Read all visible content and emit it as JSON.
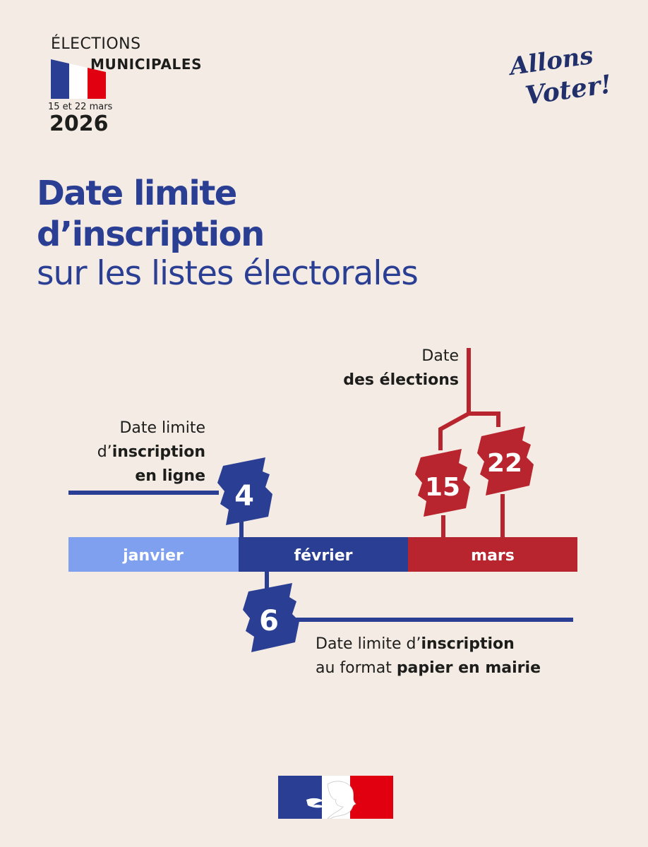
{
  "header": {
    "elections": "ÉLECTIONS",
    "municipales": "MUNICIPALES",
    "dates": "15 et 22 mars",
    "year": "2026",
    "slogan_line1": "Allons",
    "slogan_line2": "Voter!"
  },
  "title": {
    "line1": "Date limite",
    "line2": "d’inscription",
    "line3": "sur les listes électorales"
  },
  "timeline": {
    "months": [
      "janvier",
      "février",
      "mars"
    ],
    "days": {
      "online": "4",
      "paper": "6",
      "first_round": "15",
      "second_round": "22"
    },
    "notes": {
      "elections_line1": "Date",
      "elections_line2": "des élections",
      "online_line1": "Date limite",
      "online_line2_prefix": "d’",
      "online_line2_bold": "inscription",
      "online_line3": "en ligne",
      "paper_line1_prefix": "Date limite d’",
      "paper_line1_bold": "inscription",
      "paper_line2_prefix": "au format ",
      "paper_line2_bold": "papier en mairie"
    }
  },
  "colors": {
    "background": "#f3ebe4",
    "blue_dark": "#2a3f94",
    "blue_light": "#7fa0ee",
    "red": "#b8252e",
    "text": "#1d1d1b"
  }
}
